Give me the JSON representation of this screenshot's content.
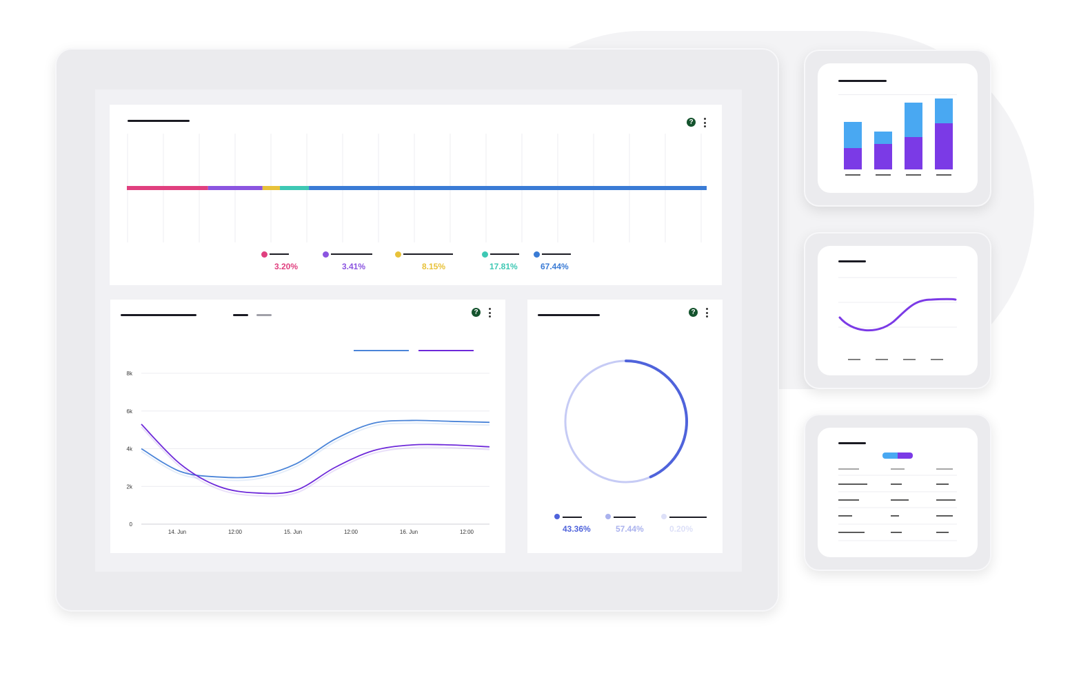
{
  "colors": {
    "pink": "#e0407f",
    "purple": "#8b55e0",
    "yellow": "#e8c23a",
    "teal": "#3ec8b4",
    "blue": "#3a7bd5",
    "line_blue": "#4a84d8",
    "line_purple": "#6d28d9",
    "ring_dark": "#4f63db",
    "ring_light": "#c6cbf5",
    "mini_bar_top": "#49a8f2",
    "mini_bar_bottom": "#7b3ae6"
  },
  "distribution_card": {
    "legend": [
      {
        "color": "pink",
        "value": "3.20%"
      },
      {
        "color": "purple",
        "value": "3.41%"
      },
      {
        "color": "yellow",
        "value": "8.15%"
      },
      {
        "color": "teal",
        "value": "17.81%"
      },
      {
        "color": "blue",
        "value": "67.44%"
      }
    ],
    "icons": [
      "help-icon",
      "more-vertical-icon"
    ]
  },
  "line_card": {
    "help_glyph": "?",
    "chart_data": {
      "type": "line",
      "x": [
        "14. Jun",
        "12:00",
        "15. Jun",
        "12:00",
        "16. Jun",
        "12:00"
      ],
      "y_ticks": [
        "0",
        "2k",
        "4k",
        "6k",
        "8k"
      ],
      "ylim": [
        0,
        8000
      ],
      "series": [
        {
          "color": "line_blue",
          "points": [
            [
              0,
              4000
            ],
            [
              0.5,
              2800
            ],
            [
              1,
              2500
            ],
            [
              1.5,
              2550
            ],
            [
              2,
              3200
            ],
            [
              2.5,
              4500
            ],
            [
              3,
              5350
            ],
            [
              3.5,
              5500
            ],
            [
              4,
              5450
            ],
            [
              4.5,
              5400
            ]
          ]
        },
        {
          "color": "line_purple",
          "points": [
            [
              0,
              5300
            ],
            [
              0.5,
              3200
            ],
            [
              1,
              2000
            ],
            [
              1.5,
              1650
            ],
            [
              2,
              1800
            ],
            [
              2.5,
              3000
            ],
            [
              3,
              3900
            ],
            [
              3.5,
              4200
            ],
            [
              4,
              4200
            ],
            [
              4.5,
              4100
            ]
          ]
        }
      ]
    }
  },
  "donut_card": {
    "help_glyph": "?",
    "chart_data": {
      "type": "pie",
      "slices": [
        {
          "color": "ring_dark",
          "value": 43.36
        },
        {
          "color": "ring_light",
          "value": 57.44
        },
        {
          "color": "ring_light",
          "value": 0.2
        }
      ]
    },
    "legend": [
      {
        "value": "43.36%",
        "color": "#4f63db"
      },
      {
        "value": "57.44%",
        "color": "#aab2ee"
      },
      {
        "value": "0.20%",
        "color": "#dde0f8"
      }
    ]
  }
}
